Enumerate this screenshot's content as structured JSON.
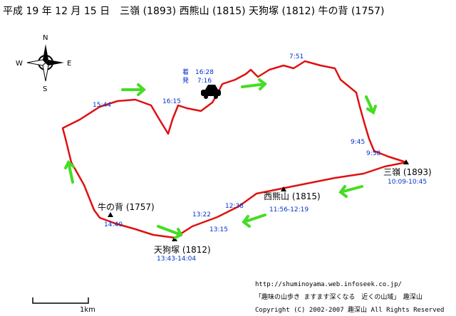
{
  "title": "平成 19 年 12 月 15 日　三嶺 (1893) 西熊山 (1815) 天狗塚 (1812) 牛の背 (1757)",
  "compass": {
    "n": "N",
    "e": "E",
    "s": "S",
    "w": "W"
  },
  "car": {
    "arrive": "着　16:28",
    "depart": "発　 7:16"
  },
  "peaks": [
    {
      "name": "三嶺 (1893)",
      "time": "10:09-10:45"
    },
    {
      "name": "西熊山 (1815)",
      "time": "11:56-12:19"
    },
    {
      "name": "天狗塚 (1812)",
      "time": "13:43-14:04"
    },
    {
      "name": "牛の背 (1757)",
      "time": "14:40"
    }
  ],
  "waypoints": [
    "7:51",
    "15:44",
    "16:15",
    "9:45",
    "9:58",
    "13:22",
    "12:38",
    "13:15"
  ],
  "scale": "1km",
  "footer": {
    "url": "http://shuminoyama.web.infoseek.co.jp/",
    "tagline": "「趣味の山歩き ますます深くなる　近くの山域」　趣深山",
    "copyright": "Copyright (C) 2002-2007 趣深山 All Rights Reserved"
  }
}
